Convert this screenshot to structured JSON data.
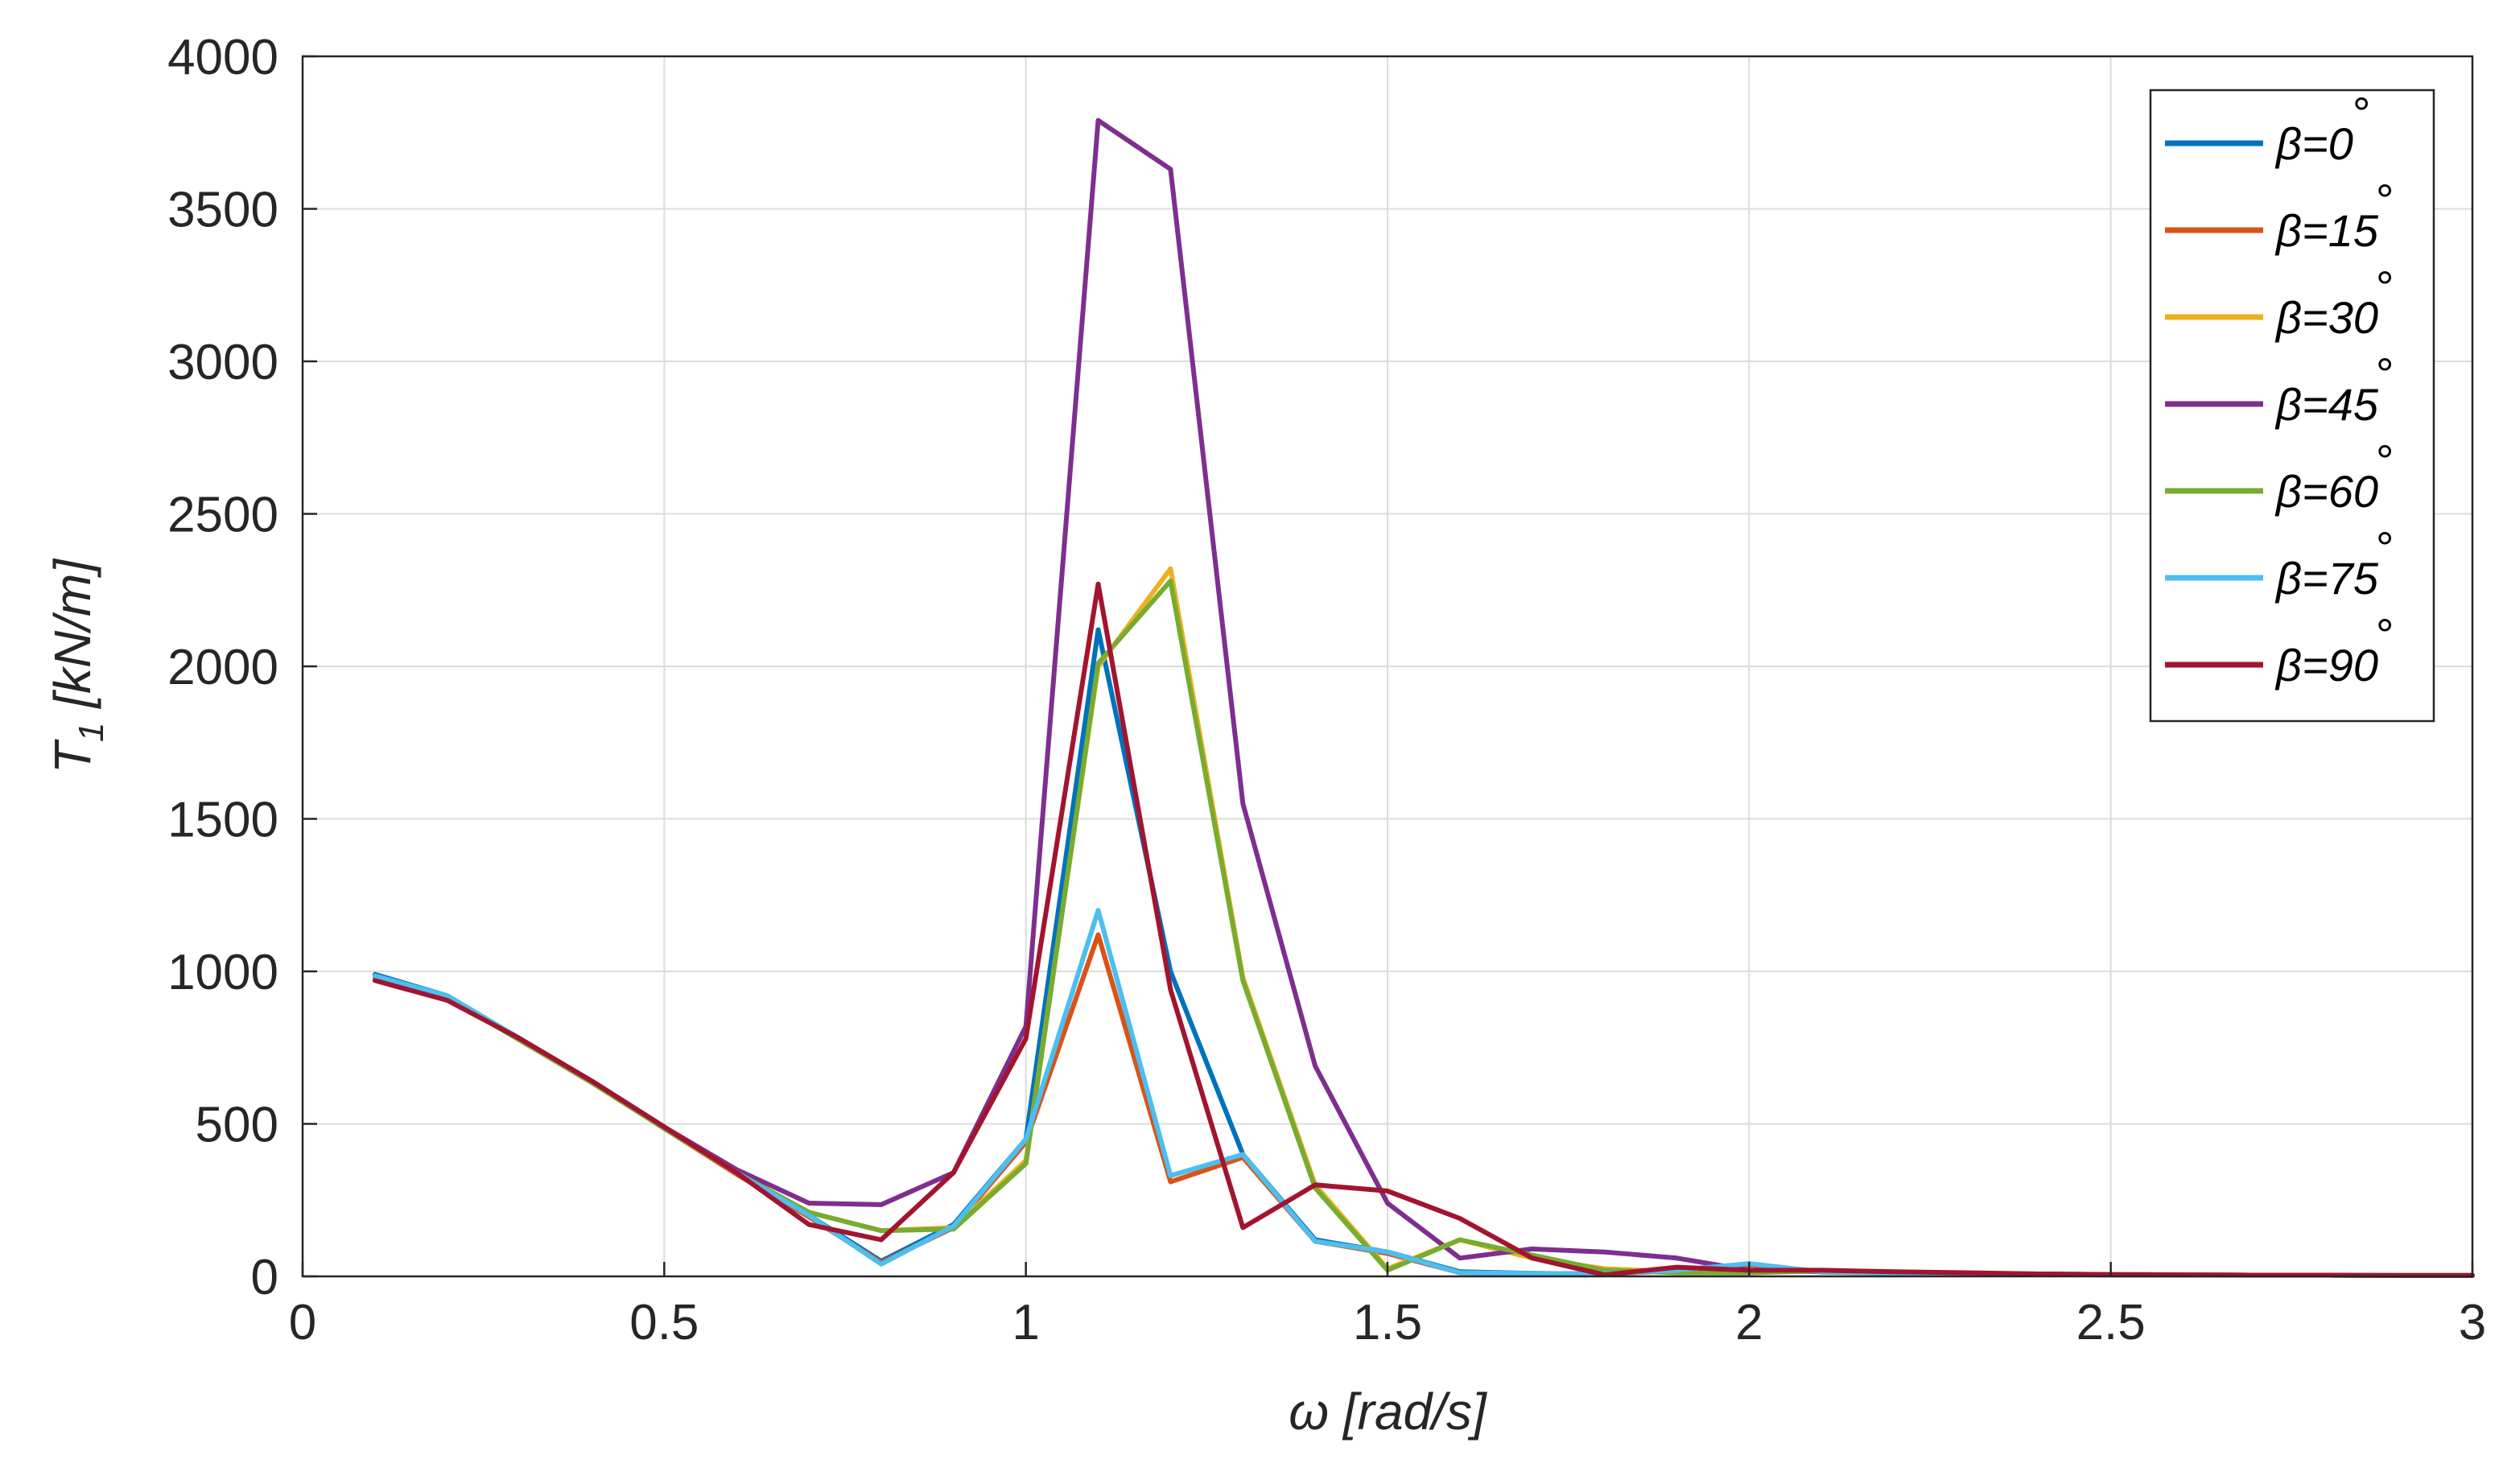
{
  "chart_data": {
    "type": "line",
    "title": "",
    "xlabel": "ω [rad/s]",
    "ylabel_main": "T",
    "ylabel_sub": "1",
    "ylabel_unit": " [kN/m]",
    "xlim": [
      0,
      3
    ],
    "ylim": [
      0,
      4000
    ],
    "xticks": [
      0,
      0.5,
      1,
      1.5,
      2,
      2.5,
      3
    ],
    "xtick_labels": [
      "0",
      "0.5",
      "1",
      "1.5",
      "2",
      "2.5",
      "3"
    ],
    "yticks": [
      0,
      500,
      1000,
      1500,
      2000,
      2500,
      3000,
      3500,
      4000
    ],
    "ytick_labels": [
      "0",
      "500",
      "1000",
      "1500",
      "2000",
      "2500",
      "3000",
      "3500",
      "4000"
    ],
    "grid": true,
    "legend_position": "top-right",
    "x": [
      0.1,
      0.2,
      0.3,
      0.4,
      0.5,
      0.6,
      0.7,
      0.8,
      0.9,
      1.0,
      1.1,
      1.2,
      1.3,
      1.4,
      1.5,
      1.6,
      1.7,
      1.8,
      1.9,
      2.0,
      2.1,
      2.2,
      2.3,
      2.4,
      2.5,
      2.6,
      2.7,
      2.8,
      2.9,
      3.0
    ],
    "series": [
      {
        "name": "β=0",
        "degree": "°",
        "color": "#0072BD",
        "values": [
          990,
          920,
          780,
          640,
          490,
          340,
          200,
          50,
          170,
          450,
          2120,
          1000,
          400,
          120,
          80,
          15,
          10,
          8,
          20,
          40,
          15,
          10,
          8,
          6,
          5,
          5,
          4,
          4,
          3,
          3
        ]
      },
      {
        "name": "β=15",
        "degree": "°",
        "color": "#D95319",
        "values": [
          985,
          915,
          775,
          635,
          485,
          335,
          195,
          45,
          160,
          440,
          1120,
          310,
          390,
          115,
          75,
          12,
          9,
          8,
          18,
          38,
          14,
          10,
          8,
          6,
          5,
          5,
          4,
          4,
          3,
          3
        ]
      },
      {
        "name": "β=30",
        "degree": "°",
        "color": "#EDB120",
        "values": [
          980,
          915,
          775,
          635,
          485,
          340,
          210,
          150,
          160,
          380,
          2000,
          2320,
          980,
          300,
          25,
          120,
          60,
          25,
          15,
          15,
          18,
          12,
          8,
          6,
          5,
          5,
          4,
          4,
          3,
          3
        ]
      },
      {
        "name": "β=45",
        "degree": "°",
        "color": "#7E2F8E",
        "values": [
          975,
          910,
          780,
          640,
          490,
          350,
          240,
          235,
          340,
          820,
          3790,
          3630,
          1550,
          690,
          240,
          60,
          90,
          80,
          60,
          20,
          15,
          12,
          10,
          8,
          6,
          5,
          4,
          4,
          3,
          3
        ]
      },
      {
        "name": "β=60",
        "degree": "°",
        "color": "#77AC30",
        "values": [
          980,
          915,
          775,
          635,
          485,
          340,
          210,
          150,
          155,
          370,
          2010,
          2280,
          970,
          290,
          20,
          120,
          70,
          20,
          12,
          12,
          18,
          12,
          8,
          6,
          5,
          5,
          4,
          4,
          3,
          3
        ]
      },
      {
        "name": "β=75",
        "degree": "°",
        "color": "#4DBEEE",
        "values": [
          985,
          920,
          780,
          640,
          490,
          340,
          200,
          40,
          165,
          450,
          1200,
          330,
          400,
          115,
          80,
          12,
          10,
          8,
          20,
          42,
          15,
          10,
          8,
          6,
          5,
          5,
          4,
          4,
          3,
          3
        ]
      },
      {
        "name": "β=90",
        "degree": "°",
        "color": "#A2142F",
        "values": [
          970,
          905,
          780,
          640,
          490,
          340,
          170,
          120,
          340,
          780,
          2270,
          940,
          160,
          300,
          280,
          190,
          60,
          5,
          30,
          20,
          20,
          15,
          12,
          8,
          6,
          5,
          4,
          4,
          3,
          3
        ]
      }
    ]
  }
}
